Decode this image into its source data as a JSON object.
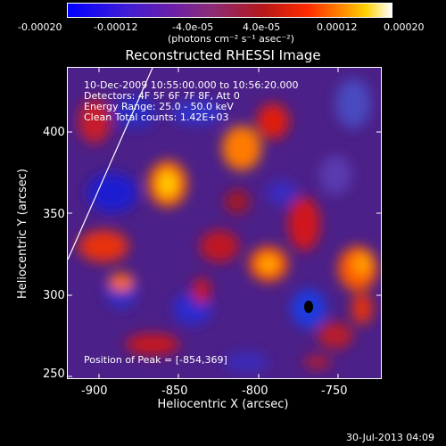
{
  "colorbar": {
    "tick_labels": [
      "-0.00020",
      "-0.00012",
      "-4.0e-05",
      "4.0e-05",
      "0.00012",
      "0.00020"
    ],
    "units_label": "(photons cm⁻² s⁻¹ asec⁻²)"
  },
  "plot": {
    "title": "Reconstructed RHESSI Image",
    "annotations": [
      "10-Dec-2009 10:55:00.000 to 10:56:20.000",
      "Detectors: 4F 5F 6F 7F 8F, Att 0",
      "Energy Range: 25.0 - 50.0 keV",
      "Clean    Total counts: 1.42E+03"
    ],
    "peak_label": "Position of Peak = [-854,369]",
    "x_tick_labels": [
      "-900",
      "-850",
      "-800",
      "-750"
    ],
    "y_tick_labels": [
      "400",
      "350",
      "300",
      "250"
    ],
    "xlabel": "Heliocentric X (arcsec)",
    "ylabel": "Heliocentric Y (arcsec)"
  },
  "footer": {
    "timestamp": "30-Jul-2013 04:09"
  }
}
